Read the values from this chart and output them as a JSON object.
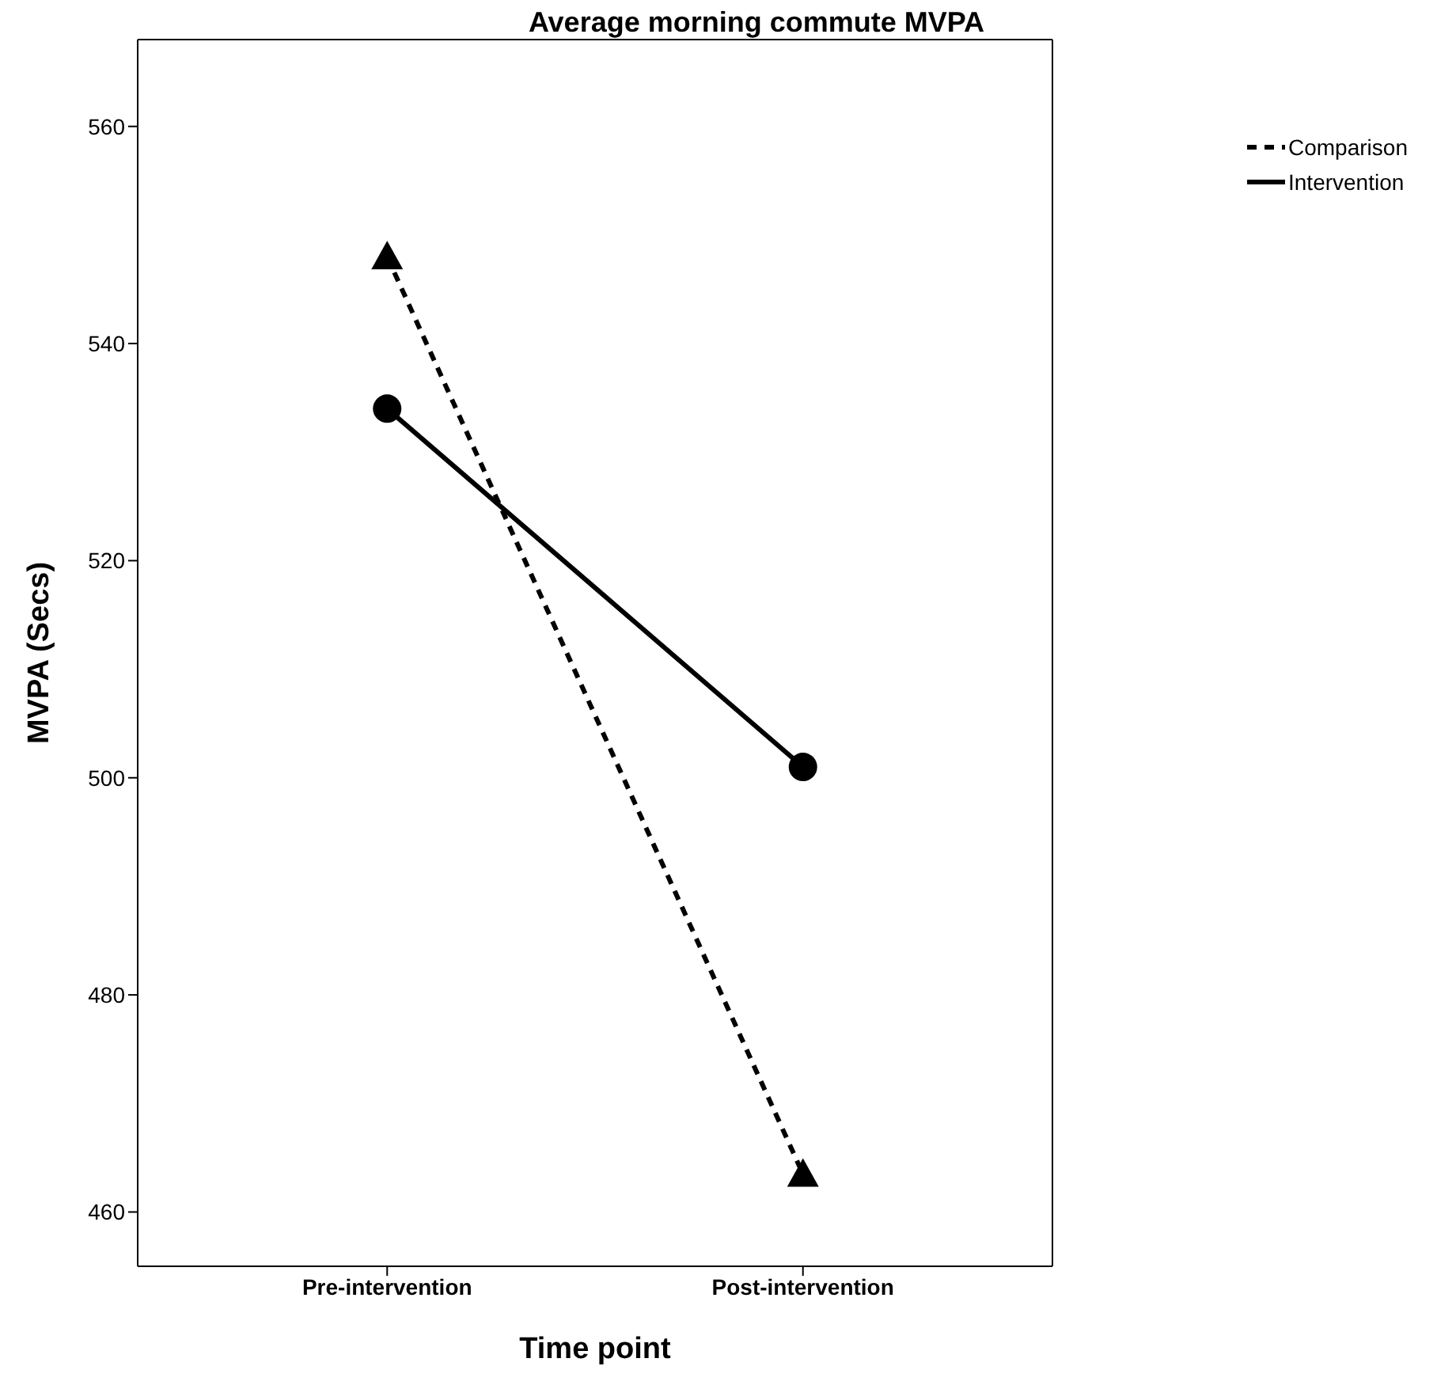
{
  "chart_data": {
    "type": "line",
    "title": "Average morning commute MVPA",
    "xlabel": "Time point",
    "ylabel": "MVPA (Secs)",
    "categories": [
      "Pre-intervention",
      "Post-intervention"
    ],
    "series": [
      {
        "name": "Comparison",
        "color": "#000000",
        "values": [
          548,
          463.5
        ],
        "marker": "triangle",
        "line_style": "dashed"
      },
      {
        "name": "Intervention",
        "color": "#000000",
        "values": [
          534,
          501
        ],
        "marker": "circle",
        "line_style": "solid"
      }
    ],
    "ylim": [
      455,
      568
    ],
    "yticks": [
      460,
      480,
      500,
      520,
      540,
      560
    ],
    "legend": "top right"
  }
}
